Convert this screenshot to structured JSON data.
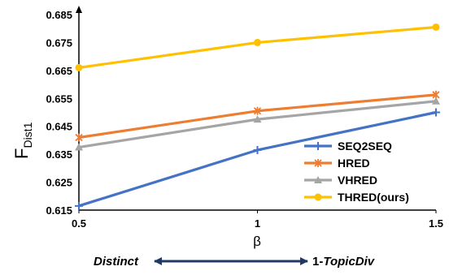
{
  "chart_data": {
    "type": "line",
    "x": [
      0.5,
      1,
      1.5
    ],
    "xticks": [
      "0.5",
      "1",
      "1.5"
    ],
    "yticks": [
      "0.615",
      "0.625",
      "0.635",
      "0.645",
      "0.655",
      "0.665",
      "0.675",
      "0.685"
    ],
    "ylim": [
      0.615,
      0.685
    ],
    "xlim": [
      0.5,
      1.5
    ],
    "xlabel": "β",
    "ylabel": {
      "main": "F",
      "sub": "Dist1"
    },
    "grid": false,
    "legend_position": "lower-right",
    "series": [
      {
        "name": "SEQ2SEQ",
        "values": [
          0.6165,
          0.6365,
          0.65
        ],
        "color": "#4472C4",
        "marker": "plus"
      },
      {
        "name": "HRED",
        "values": [
          0.641,
          0.6505,
          0.6563
        ],
        "color": "#ED7D31",
        "marker": "star"
      },
      {
        "name": "VHRED",
        "values": [
          0.6375,
          0.6475,
          0.654
        ],
        "color": "#A5A5A5",
        "marker": "triangle"
      },
      {
        "name": "THRED(ours)",
        "values": [
          0.666,
          0.675,
          0.6805
        ],
        "color": "#FFC000",
        "marker": "circle"
      }
    ],
    "annotation": {
      "left": "Distinct",
      "right_prefix": "1-",
      "right_italic": "TopicDiv",
      "arrow_color": "#1F3864"
    }
  }
}
